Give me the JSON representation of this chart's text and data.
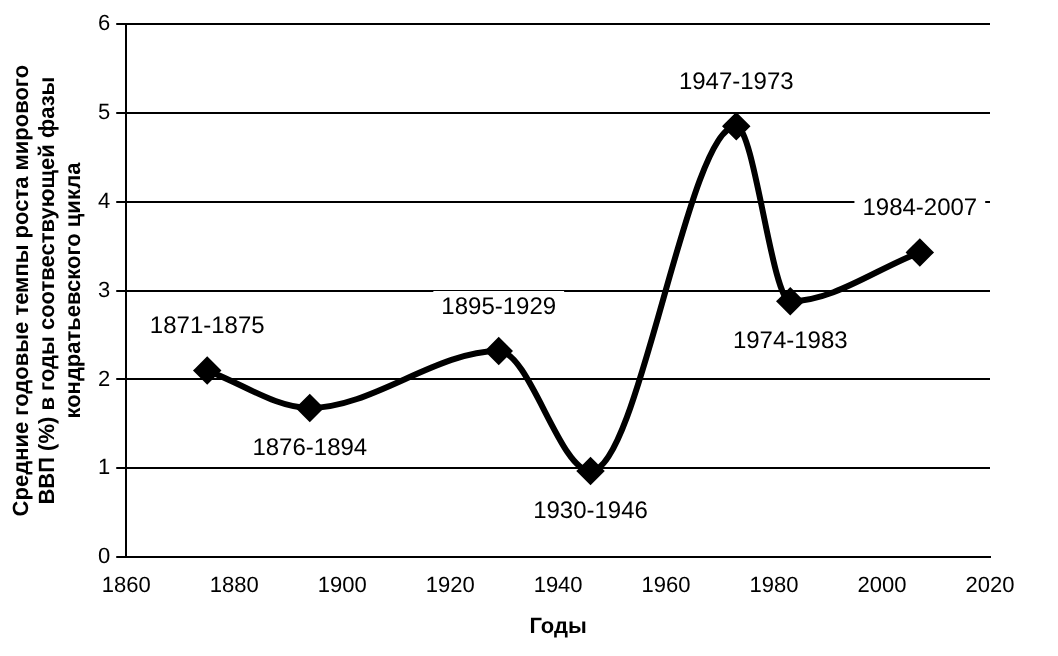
{
  "chart_data": {
    "type": "line",
    "xlabel": "Годы",
    "ylabel": "Средние годовые темпы роста мирового ВВП (%) в годы соотвествующей фазы кондратьевского цикла",
    "x": [
      1875,
      1894,
      1929,
      1946,
      1973,
      1983,
      2007
    ],
    "series": [
      {
        "color": "#000000",
        "values": [
          2.1,
          1.68,
          2.32,
          0.97,
          4.85,
          2.88,
          3.43
        ]
      }
    ],
    "xlim": [
      1860,
      2020
    ],
    "xticks": [
      1860,
      1880,
      1900,
      1920,
      1940,
      1960,
      1980,
      2000,
      2020
    ],
    "ylim": [
      0,
      6
    ],
    "yticks": [
      0,
      1,
      2,
      3,
      4,
      5,
      6
    ],
    "grid": "y",
    "legend": false,
    "marker": "diamond",
    "line_style": "solid",
    "annotations": [
      {
        "text": "1871-1875",
        "x": 1875,
        "y": 2.1
      },
      {
        "text": "1876-1894",
        "x": 1894,
        "y": 1.68
      },
      {
        "text": "1895-1929",
        "x": 1929,
        "y": 2.32
      },
      {
        "text": "1930-1946",
        "x": 1946,
        "y": 0.97
      },
      {
        "text": "1947-1973",
        "x": 1973,
        "y": 4.85
      },
      {
        "text": "1974-1983",
        "x": 1983,
        "y": 2.88
      },
      {
        "text": "1984-2007",
        "x": 2007,
        "y": 3.43
      }
    ]
  }
}
